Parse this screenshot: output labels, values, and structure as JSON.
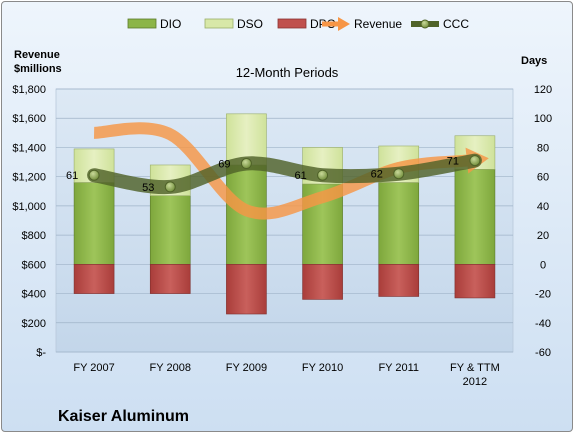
{
  "chart_data": {
    "type": "bar",
    "title": "12-Month Periods",
    "company": "Kaiser Aluminum",
    "y_left_label": [
      "Revenue",
      "$millions"
    ],
    "y_right_label": "Days",
    "categories": [
      [
        "FY 2007"
      ],
      [
        "FY 2008"
      ],
      [
        "FY 2009"
      ],
      [
        "FY 2010"
      ],
      [
        "FY 2011"
      ],
      [
        "FY & TTM",
        "2012"
      ]
    ],
    "y_left": {
      "min": 0,
      "max": 1800,
      "step": 200,
      "tick_labels": [
        "$-",
        "$200",
        "$400",
        "$600",
        "$800",
        "$1,000",
        "$1,200",
        "$1,400",
        "$1,600",
        "$1,800"
      ]
    },
    "y_right": {
      "min": -60,
      "max": 120,
      "step": 20,
      "tick_labels": [
        "-60",
        "-40",
        "-20",
        "0",
        "20",
        "40",
        "60",
        "80",
        "100",
        "120"
      ]
    },
    "grid": true,
    "legend_position": "top",
    "series": [
      {
        "name": "DIO",
        "axis": "right",
        "kind": "stacked-bar",
        "color": "#8cb548",
        "values": [
          56,
          47,
          68,
          55,
          56,
          65
        ]
      },
      {
        "name": "DSO",
        "axis": "right",
        "kind": "stacked-bar",
        "color": "#d8e8a8",
        "values": [
          23,
          21,
          35,
          25,
          25,
          23
        ]
      },
      {
        "name": "DPO",
        "axis": "right",
        "kind": "stacked-bar",
        "color": "#c0504d",
        "values": [
          -20,
          -20,
          -34,
          -24,
          -22,
          -23
        ]
      },
      {
        "name": "Revenue",
        "axis": "left",
        "kind": "arrow-line",
        "color": "#f79646",
        "values": [
          1500,
          1490,
          970,
          1060,
          1260,
          1310
        ]
      },
      {
        "name": "CCC",
        "axis": "right",
        "kind": "line",
        "color": "#4f6228",
        "values": [
          61,
          53,
          69,
          61,
          62,
          71
        ]
      }
    ],
    "data_labels": [
      "61",
      "53",
      "69",
      "61",
      "62",
      "71"
    ]
  }
}
